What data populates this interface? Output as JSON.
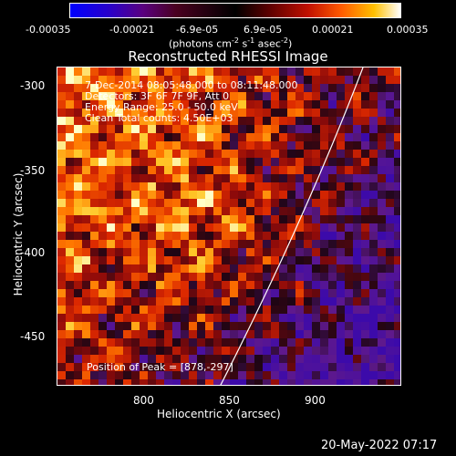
{
  "colorbar": {
    "ticks": [
      "-0.00035",
      "-0.00021",
      "-6.9e-05",
      "6.9e-05",
      "0.00021",
      "0.00035"
    ],
    "unit_prefix": "(photons cm",
    "unit_sup1": "-2",
    "unit_mid1": " s",
    "unit_sup2": "-1",
    "unit_mid2": " asec",
    "unit_sup3": "-2",
    "unit_suffix": ")"
  },
  "title": "Reconstructed RHESSI Image",
  "annotations": {
    "time": "7-Dec-2014 08:05:48.000 to 08:11:48.000",
    "detectors": "Detectors: 3F 6F 7F 9F, Att 0",
    "energy": "Energy Range: 25.0 - 50.0 keV",
    "method": "Clean     Total counts: 4.50E+03",
    "peak": "Position of Peak = [878,-297]"
  },
  "axes": {
    "xlabel": "Heliocentric X (arcsec)",
    "ylabel": "Heliocentric Y (arcsec)",
    "xticks": [
      "800",
      "850",
      "900"
    ],
    "yticks": [
      "-300",
      "-350",
      "-400",
      "-450"
    ],
    "xrange": [
      755,
      945
    ],
    "yrange": [
      -482,
      -288
    ]
  },
  "footer": {
    "date": "20-May-2022 07:17"
  },
  "colors": {
    "limb": "#ffffff",
    "text": "#ffffff",
    "background": "#000000"
  }
}
